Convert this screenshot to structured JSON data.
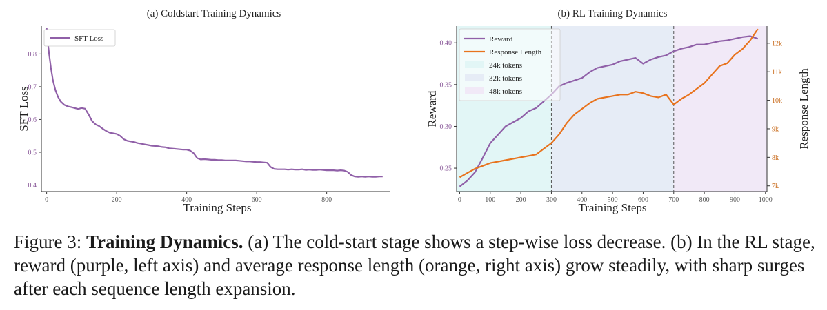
{
  "panels": [
    {
      "title": "(a) Coldstart Training Dynamics",
      "xlabel": "Training Steps",
      "ylabel": "SFT Loss",
      "legend": "SFT Loss",
      "xticks": [
        "0",
        "200",
        "400",
        "600",
        "800"
      ],
      "yticks": [
        "0.4",
        "0.5",
        "0.6",
        "0.7",
        "0.8"
      ]
    },
    {
      "title": "(b) RL Training Dynamics",
      "xlabel": "Training Steps",
      "ylabel_left": "Reward",
      "ylabel_right": "Response Length",
      "legend": [
        "Reward",
        "Response Length",
        "24k tokens",
        "32k tokens",
        "48k tokens"
      ],
      "xticks": [
        "0",
        "100",
        "200",
        "300",
        "400",
        "500",
        "600",
        "700",
        "800",
        "900",
        "1000"
      ],
      "yticks_left": [
        "0.25",
        "0.30",
        "0.35",
        "0.40"
      ],
      "yticks_right": [
        "7k",
        "8k",
        "9k",
        "10k",
        "11k",
        "12k"
      ]
    }
  ],
  "colors": {
    "purple": "#9060a8",
    "orange": "#e8731d",
    "band_24k": "#e2f6f6",
    "band_32k": "#e6ecf6",
    "band_48k": "#f1e9f7"
  },
  "chart_data": [
    {
      "type": "line",
      "title": "(a) Coldstart Training Dynamics",
      "xlabel": "Training Steps",
      "ylabel": "SFT Loss",
      "xlim": [
        -15,
        980
      ],
      "ylim": [
        0.38,
        0.885
      ],
      "legend_position": "top-left",
      "grid": false,
      "series": [
        {
          "name": "SFT Loss",
          "x": [
            0,
            3,
            7,
            12,
            18,
            25,
            32,
            40,
            50,
            60,
            70,
            80,
            90,
            100,
            110,
            120,
            130,
            140,
            150,
            160,
            170,
            180,
            190,
            200,
            210,
            220,
            230,
            240,
            250,
            260,
            270,
            280,
            290,
            300,
            310,
            320,
            330,
            340,
            350,
            360,
            370,
            380,
            390,
            400,
            410,
            420,
            430,
            440,
            450,
            460,
            470,
            480,
            490,
            500,
            510,
            520,
            530,
            540,
            550,
            560,
            570,
            580,
            590,
            600,
            610,
            620,
            630,
            640,
            650,
            660,
            670,
            680,
            690,
            700,
            710,
            720,
            730,
            740,
            750,
            760,
            770,
            780,
            790,
            800,
            810,
            820,
            830,
            840,
            850,
            860,
            870,
            880,
            890,
            900,
            910,
            920,
            930,
            940,
            950,
            960
          ],
          "y": [
            0.88,
            0.84,
            0.8,
            0.76,
            0.72,
            0.69,
            0.67,
            0.655,
            0.645,
            0.64,
            0.638,
            0.635,
            0.632,
            0.635,
            0.633,
            0.615,
            0.595,
            0.585,
            0.58,
            0.572,
            0.565,
            0.56,
            0.558,
            0.556,
            0.55,
            0.54,
            0.535,
            0.533,
            0.531,
            0.528,
            0.526,
            0.524,
            0.522,
            0.52,
            0.519,
            0.518,
            0.516,
            0.515,
            0.512,
            0.511,
            0.51,
            0.509,
            0.508,
            0.508,
            0.505,
            0.497,
            0.482,
            0.478,
            0.479,
            0.478,
            0.477,
            0.477,
            0.476,
            0.476,
            0.475,
            0.475,
            0.475,
            0.475,
            0.474,
            0.473,
            0.472,
            0.472,
            0.471,
            0.47,
            0.47,
            0.469,
            0.468,
            0.455,
            0.449,
            0.448,
            0.448,
            0.448,
            0.447,
            0.448,
            0.447,
            0.447,
            0.448,
            0.446,
            0.447,
            0.446,
            0.446,
            0.447,
            0.446,
            0.445,
            0.445,
            0.445,
            0.444,
            0.445,
            0.444,
            0.44,
            0.43,
            0.426,
            0.425,
            0.426,
            0.425,
            0.426,
            0.425,
            0.425,
            0.426,
            0.426
          ]
        }
      ]
    },
    {
      "type": "line",
      "title": "(b) RL Training Dynamics",
      "xlabel": "Training Steps",
      "ylabel": "Reward",
      "ylabel_right": "Response Length",
      "xlim": [
        -10,
        1005
      ],
      "ylim": [
        0.222,
        0.42
      ],
      "ylim_right": [
        6.8,
        12.6
      ],
      "legend_position": "top-left",
      "grid": false,
      "bands": [
        {
          "label": "24k tokens",
          "x_start": -10,
          "x_end": 300
        },
        {
          "label": "32k tokens",
          "x_start": 300,
          "x_end": 700
        },
        {
          "label": "48k tokens",
          "x_start": 700,
          "x_end": 1005
        }
      ],
      "vlines": [
        300,
        700
      ],
      "series": [
        {
          "name": "Reward",
          "axis": "left",
          "x": [
            0,
            25,
            50,
            75,
            100,
            125,
            150,
            175,
            200,
            225,
            250,
            275,
            300,
            325,
            350,
            375,
            400,
            425,
            450,
            475,
            500,
            525,
            550,
            575,
            600,
            625,
            650,
            675,
            700,
            725,
            750,
            775,
            800,
            825,
            850,
            875,
            900,
            925,
            950,
            975
          ],
          "y": [
            0.228,
            0.235,
            0.245,
            0.262,
            0.28,
            0.29,
            0.3,
            0.305,
            0.31,
            0.318,
            0.322,
            0.33,
            0.338,
            0.348,
            0.352,
            0.355,
            0.358,
            0.365,
            0.37,
            0.372,
            0.374,
            0.378,
            0.38,
            0.382,
            0.375,
            0.38,
            0.383,
            0.385,
            0.39,
            0.393,
            0.395,
            0.398,
            0.398,
            0.4,
            0.402,
            0.403,
            0.405,
            0.407,
            0.408,
            0.405
          ]
        },
        {
          "name": "Response Length",
          "axis": "right",
          "unit": "k",
          "x": [
            0,
            25,
            50,
            75,
            100,
            125,
            150,
            175,
            200,
            225,
            250,
            275,
            300,
            325,
            350,
            375,
            400,
            425,
            450,
            475,
            500,
            525,
            550,
            575,
            600,
            625,
            650,
            675,
            700,
            725,
            750,
            775,
            800,
            825,
            850,
            875,
            900,
            925,
            950,
            975
          ],
          "y": [
            7.3,
            7.45,
            7.6,
            7.7,
            7.8,
            7.85,
            7.9,
            7.95,
            8.0,
            8.05,
            8.1,
            8.3,
            8.5,
            8.8,
            9.2,
            9.5,
            9.7,
            9.9,
            10.05,
            10.1,
            10.15,
            10.2,
            10.2,
            10.3,
            10.25,
            10.15,
            10.1,
            10.2,
            9.85,
            10.05,
            10.2,
            10.4,
            10.6,
            10.9,
            11.2,
            11.3,
            11.6,
            11.8,
            12.1,
            12.5
          ]
        }
      ]
    }
  ],
  "caption": {
    "prefix": "Figure 3: ",
    "bold": "Training Dynamics.",
    "text": " (a) The cold-start stage shows a step-wise loss decrease. (b) In the RL stage, reward (purple, left axis) and average response length (orange, right axis) grow steadily, with sharp surges after each sequence length expansion."
  }
}
